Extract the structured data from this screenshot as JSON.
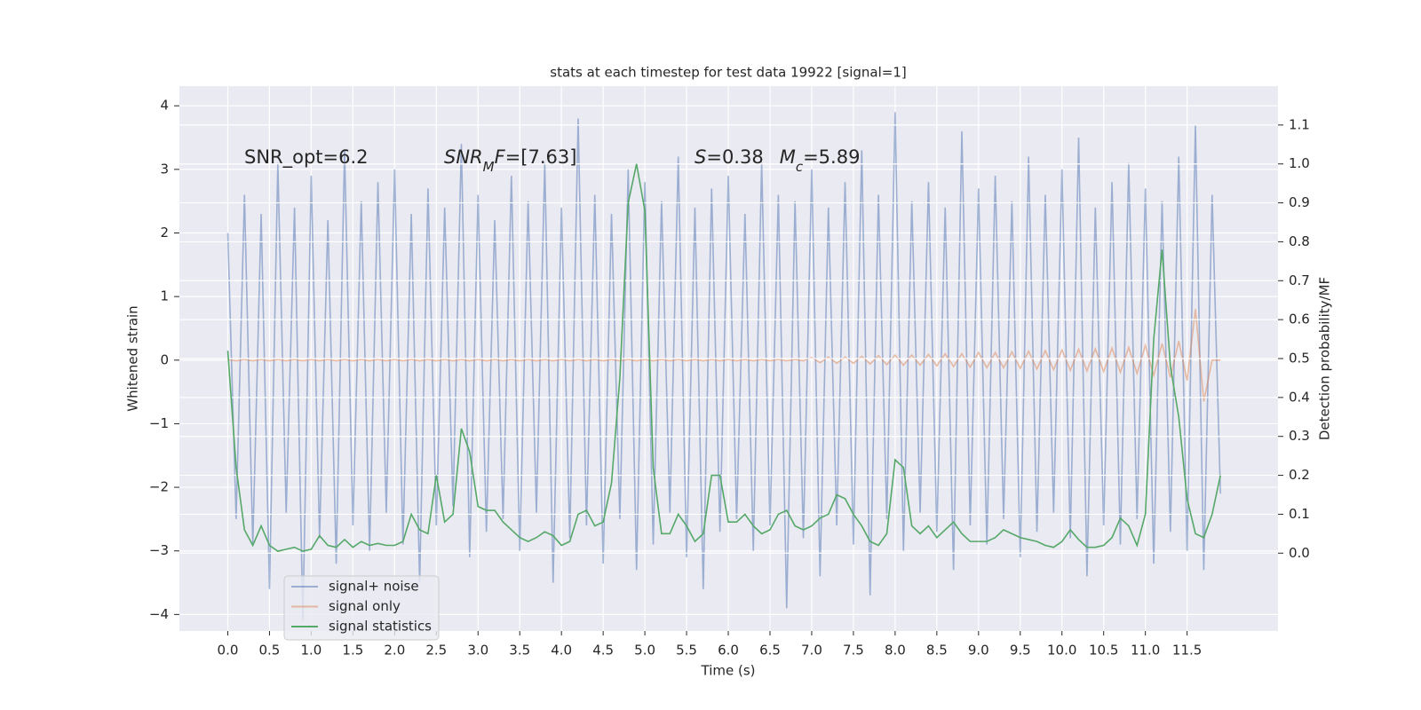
{
  "chart_data": {
    "type": "line",
    "title": "stats at each timestep for test data 19922 [signal=1]",
    "xlabel": "Time (s)",
    "ylabel": "Whitened strain",
    "y2label": "Detection probability/MF",
    "annotations": [
      [
        {
          "text": "SNR_opt=6.2",
          "style": "normal"
        }
      ],
      [
        {
          "text": "SNR",
          "style": "italic"
        },
        {
          "text": "M",
          "style": "italic-sub"
        },
        {
          "text": "F",
          "style": "italic"
        },
        {
          "text": "=[7.63]",
          "style": "normal"
        }
      ],
      [
        {
          "text": "S",
          "style": "italic"
        },
        {
          "text": "=0.38",
          "style": "normal"
        },
        {
          "text": "M",
          "style": "italic"
        },
        {
          "text": "c",
          "style": "italic-sub"
        },
        {
          "text": "=5.89",
          "style": "normal"
        }
      ]
    ],
    "x": [
      0,
      0.1,
      0.2,
      0.3,
      0.4,
      0.5,
      0.6,
      0.7,
      0.8,
      0.9,
      1,
      1.1,
      1.2,
      1.3,
      1.4,
      1.5,
      1.6,
      1.7,
      1.8,
      1.9,
      2,
      2.1,
      2.2,
      2.3,
      2.4,
      2.5,
      2.6,
      2.7,
      2.8,
      2.9,
      3,
      3.1,
      3.2,
      3.3,
      3.4,
      3.5,
      3.6,
      3.7,
      3.8,
      3.9,
      4,
      4.1,
      4.2,
      4.3,
      4.4,
      4.5,
      4.6,
      4.7,
      4.8,
      4.9,
      5,
      5.1,
      5.2,
      5.3,
      5.4,
      5.5,
      5.6,
      5.7,
      5.8,
      5.9,
      6,
      6.1,
      6.2,
      6.3,
      6.4,
      6.5,
      6.6,
      6.7,
      6.8,
      6.9,
      7,
      7.1,
      7.2,
      7.3,
      7.4,
      7.5,
      7.6,
      7.7,
      7.8,
      7.9,
      8,
      8.1,
      8.2,
      8.3,
      8.4,
      8.5,
      8.6,
      8.7,
      8.8,
      8.9,
      9,
      9.1,
      9.2,
      9.3,
      9.4,
      9.5,
      9.6,
      9.7,
      9.8,
      9.9,
      10,
      10.1,
      10.2,
      10.3,
      10.4,
      10.5,
      10.6,
      10.7,
      10.8,
      10.9,
      11,
      11.1,
      11.2,
      11.3,
      11.4,
      11.5,
      11.6,
      11.7,
      11.8,
      11.9
    ],
    "series": [
      {
        "name": "signal+ noise",
        "color": "#4c72b0",
        "opacity": 0.5,
        "axis": "y",
        "values": [
          2.0,
          -2.5,
          2.6,
          -2.9,
          2.3,
          -3.6,
          3.1,
          -2.4,
          2.4,
          -4.1,
          2.9,
          -2.8,
          2.2,
          -3.2,
          3.3,
          -2.6,
          2.5,
          -3.0,
          2.8,
          -2.4,
          3.0,
          -2.9,
          2.3,
          -3.5,
          2.7,
          -2.6,
          2.4,
          -2.3,
          3.4,
          -3.1,
          2.6,
          -2.7,
          2.2,
          -2.5,
          2.9,
          -3.0,
          2.5,
          -2.4,
          3.1,
          -3.5,
          2.4,
          -2.8,
          3.8,
          -2.6,
          2.6,
          -3.2,
          2.3,
          -2.5,
          3.0,
          -3.3,
          2.8,
          -2.9,
          2.5,
          -2.4,
          3.2,
          -3.1,
          2.4,
          -3.6,
          2.7,
          -2.7,
          2.9,
          -2.5,
          2.3,
          -3.0,
          3.1,
          -2.6,
          2.6,
          -3.9,
          2.5,
          -2.8,
          3.0,
          -3.4,
          2.4,
          -2.6,
          2.8,
          -2.9,
          3.3,
          -3.7,
          2.6,
          -2.5,
          3.9,
          -3.0,
          2.5,
          -2.4,
          2.8,
          -2.7,
          2.4,
          -3.3,
          3.6,
          -2.6,
          2.7,
          -2.9,
          2.9,
          -2.5,
          2.5,
          -3.1,
          3.2,
          -2.7,
          2.6,
          -2.4,
          3.0,
          -2.8,
          3.5,
          -3.4,
          2.4,
          -2.6,
          2.8,
          -2.9,
          3.1,
          -2.5,
          2.7,
          -3.2,
          2.5,
          -2.7,
          3.2,
          -3.0,
          3.7,
          -3.3,
          2.6,
          -2.1
        ]
      },
      {
        "name": "signal only",
        "color": "#dd8452",
        "opacity": 0.5,
        "axis": "y",
        "values": [
          0.01,
          -0.01,
          0.01,
          -0.01,
          0.01,
          -0.01,
          0.01,
          -0.01,
          0.01,
          -0.01,
          0.01,
          -0.01,
          0.01,
          -0.01,
          0.01,
          -0.01,
          0.01,
          -0.01,
          0.01,
          -0.01,
          0.01,
          -0.01,
          0.01,
          -0.01,
          0.01,
          -0.01,
          0.01,
          -0.01,
          0.01,
          -0.01,
          0.01,
          -0.01,
          0.01,
          -0.01,
          0.01,
          -0.01,
          0.01,
          -0.01,
          0.01,
          -0.01,
          0.01,
          -0.01,
          0.01,
          -0.01,
          0.01,
          -0.01,
          0.01,
          -0.01,
          0.01,
          -0.01,
          0.01,
          -0.01,
          0.01,
          -0.01,
          0.01,
          -0.01,
          0.01,
          -0.01,
          0.01,
          -0.01,
          0.01,
          -0.01,
          0.01,
          -0.01,
          0.01,
          -0.01,
          0.01,
          -0.01,
          0.01,
          -0.01,
          0.04,
          -0.04,
          0.05,
          -0.05,
          0.05,
          -0.05,
          0.06,
          -0.06,
          0.07,
          -0.07,
          0.08,
          -0.08,
          0.08,
          -0.08,
          0.09,
          -0.09,
          0.1,
          -0.1,
          0.1,
          -0.11,
          0.12,
          -0.12,
          0.12,
          -0.12,
          0.13,
          -0.13,
          0.14,
          -0.14,
          0.15,
          -0.15,
          0.16,
          -0.16,
          0.17,
          -0.17,
          0.18,
          -0.18,
          0.19,
          -0.19,
          0.2,
          -0.21,
          0.23,
          -0.24,
          0.26,
          -0.27,
          0.3,
          -0.32,
          0.8,
          -0.65,
          0,
          0
        ]
      },
      {
        "name": "signal statistics",
        "color": "#55a868",
        "opacity": 1,
        "axis": "y2",
        "values": [
          0.52,
          0.22,
          0.06,
          0.02,
          0.07,
          0.02,
          0.005,
          0.01,
          0.015,
          0.005,
          0.01,
          0.045,
          0.02,
          0.015,
          0.035,
          0.015,
          0.03,
          0.02,
          0.025,
          0.02,
          0.02,
          0.03,
          0.1,
          0.06,
          0.05,
          0.2,
          0.08,
          0.1,
          0.32,
          0.26,
          0.12,
          0.11,
          0.11,
          0.08,
          0.06,
          0.04,
          0.03,
          0.04,
          0.055,
          0.045,
          0.02,
          0.03,
          0.1,
          0.11,
          0.07,
          0.08,
          0.18,
          0.45,
          0.9,
          1.0,
          0.88,
          0.22,
          0.05,
          0.05,
          0.1,
          0.07,
          0.03,
          0.05,
          0.2,
          0.2,
          0.08,
          0.08,
          0.1,
          0.07,
          0.05,
          0.06,
          0.1,
          0.11,
          0.07,
          0.06,
          0.07,
          0.09,
          0.1,
          0.15,
          0.14,
          0.1,
          0.07,
          0.03,
          0.02,
          0.05,
          0.24,
          0.22,
          0.07,
          0.05,
          0.07,
          0.04,
          0.06,
          0.08,
          0.05,
          0.03,
          0.03,
          0.03,
          0.04,
          0.06,
          0.05,
          0.04,
          0.035,
          0.03,
          0.02,
          0.015,
          0.03,
          0.06,
          0.035,
          0.015,
          0.015,
          0.02,
          0.04,
          0.09,
          0.07,
          0.02,
          0.1,
          0.55,
          0.78,
          0.48,
          0.35,
          0.14,
          0.05,
          0.04,
          0.1,
          0.2
        ]
      }
    ],
    "xlim": [
      -0.58,
      12.59
    ],
    "xticks": [
      {
        "value": 0,
        "label": "0.0"
      },
      {
        "value": 0.5,
        "label": "0.5"
      },
      {
        "value": 1,
        "label": "1.0"
      },
      {
        "value": 1.5,
        "label": "1.5"
      },
      {
        "value": 2,
        "label": "2.0"
      },
      {
        "value": 2.5,
        "label": "2.5"
      },
      {
        "value": 3,
        "label": "3.0"
      },
      {
        "value": 3.5,
        "label": "3.5"
      },
      {
        "value": 4,
        "label": "4.0"
      },
      {
        "value": 4.5,
        "label": "4.5"
      },
      {
        "value": 5,
        "label": "5.0"
      },
      {
        "value": 5.5,
        "label": "5.5"
      },
      {
        "value": 6,
        "label": "6.0"
      },
      {
        "value": 6.5,
        "label": "6.5"
      },
      {
        "value": 7,
        "label": "7.0"
      },
      {
        "value": 7.5,
        "label": "7.5"
      },
      {
        "value": 8,
        "label": "8.0"
      },
      {
        "value": 8.5,
        "label": "8.5"
      },
      {
        "value": 9,
        "label": "9.0"
      },
      {
        "value": 9.5,
        "label": "9.5"
      },
      {
        "value": 10,
        "label": "10.0"
      },
      {
        "value": 10.5,
        "label": "10.5"
      },
      {
        "value": 11,
        "label": "11.0"
      },
      {
        "value": 11.5,
        "label": "11.5"
      }
    ],
    "ylim": [
      -4.26,
      4.31
    ],
    "yticks": [
      {
        "value": -4,
        "label": "−4"
      },
      {
        "value": -3,
        "label": "−3"
      },
      {
        "value": -2,
        "label": "−2"
      },
      {
        "value": -1,
        "label": "−1"
      },
      0,
      1,
      2,
      3,
      4
    ],
    "y2lim": [
      -0.2,
      1.2
    ],
    "y2ticks": [
      {
        "value": 0,
        "label": "0.0"
      },
      {
        "value": 0.1,
        "label": "0.1"
      },
      {
        "value": 0.2,
        "label": "0.2"
      },
      {
        "value": 0.3,
        "label": "0.3"
      },
      {
        "value": 0.4,
        "label": "0.4"
      },
      {
        "value": 0.5,
        "label": "0.5"
      },
      {
        "value": 0.6,
        "label": "0.6"
      },
      {
        "value": 0.7,
        "label": "0.7"
      },
      {
        "value": 0.8,
        "label": "0.8"
      },
      {
        "value": 0.9,
        "label": "0.9"
      },
      {
        "value": 1,
        "label": "1.0"
      },
      {
        "value": 1.1,
        "label": "1.1"
      }
    ],
    "grid": true,
    "legend": "lower left"
  }
}
